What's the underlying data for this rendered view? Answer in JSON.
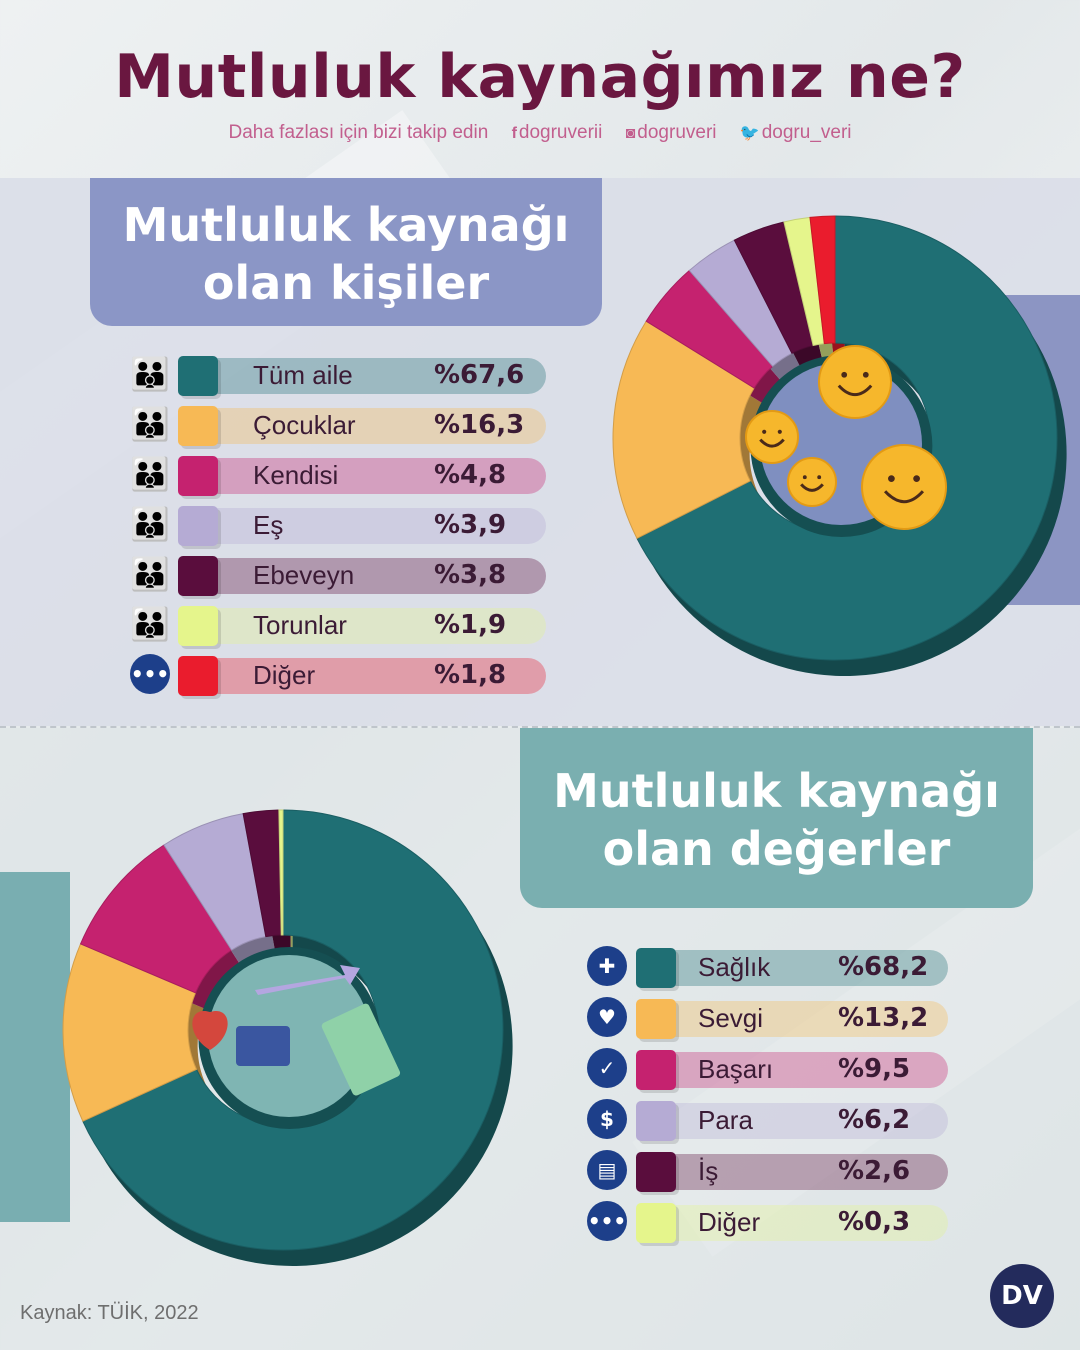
{
  "header": {
    "title": "Mutluluk kaynağımız ne?",
    "follow_text": "Daha fazlası için bizi takip edin",
    "facebook": "dogruverii",
    "instagram": "dogruveri",
    "twitter": "dogru_veri"
  },
  "section1": {
    "title_line1": "Mutluluk kaynağı",
    "title_line2": "olan kişiler"
  },
  "section2": {
    "title_line1": "Mutluluk kaynağı",
    "title_line2": "olan değerler"
  },
  "chart_data": [
    {
      "type": "pie",
      "title": "Mutluluk kaynağı olan kişiler",
      "categories": [
        "Tüm aile",
        "Çocuklar",
        "Kendisi",
        "Eş",
        "Ebeveyn",
        "Torunlar",
        "Diğer"
      ],
      "labels": [
        "%67,6",
        "%16,3",
        "%4,8",
        "%3,9",
        "%3,8",
        "%1,9",
        "%1,8"
      ],
      "values": [
        67.6,
        16.3,
        4.8,
        3.9,
        3.8,
        1.9,
        1.8
      ],
      "colors": [
        "#1f6f74",
        "#f7b955",
        "#c5226f",
        "#b5abd4",
        "#5a0d3d",
        "#e5f58c",
        "#ea1c2d"
      ],
      "icons": [
        "family-icon",
        "family-icon",
        "family-icon",
        "family-icon",
        "family-icon",
        "family-icon",
        "more-icon"
      ]
    },
    {
      "type": "pie",
      "title": "Mutluluk kaynağı olan değerler",
      "categories": [
        "Sağlık",
        "Sevgi",
        "Başarı",
        "Para",
        "İş",
        "Diğer"
      ],
      "labels": [
        "%68,2",
        "%13,2",
        "%9,5",
        "%6,2",
        "%2,6",
        "%0,3"
      ],
      "values": [
        68.2,
        13.2,
        9.5,
        6.2,
        2.6,
        0.3
      ],
      "colors": [
        "#1f6f74",
        "#f7b955",
        "#c5226f",
        "#b5abd4",
        "#5a0d3d",
        "#e5f58c"
      ],
      "icons": [
        "health-heart-icon",
        "heart-icon",
        "check-icon",
        "money-bag-icon",
        "briefcase-icon",
        "more-icon"
      ]
    }
  ],
  "footer": {
    "source": "Kaynak: TÜİK, 2022",
    "logo": "DV"
  }
}
